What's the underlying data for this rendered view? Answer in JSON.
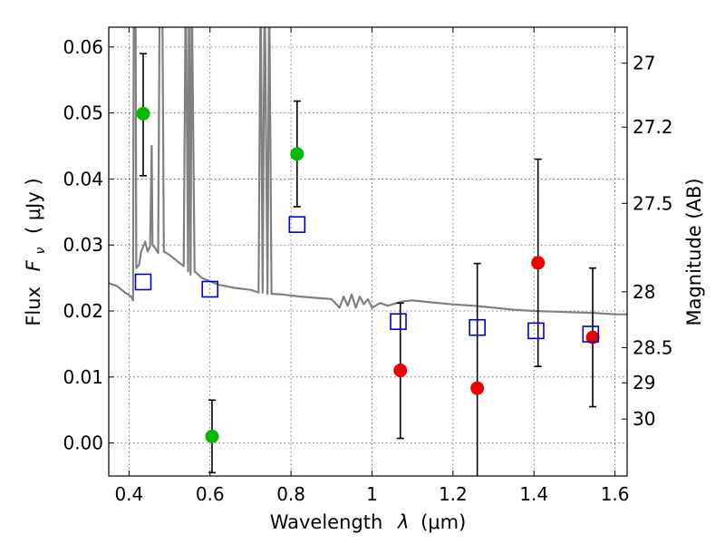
{
  "colors": {
    "model": "#808080",
    "green": "#00bb00",
    "red": "#ee0000",
    "square": "#0000cc",
    "errorbar": "#000000"
  },
  "chart_data": {
    "type": "scatter",
    "title": "",
    "xlabel_main": "Wavelength",
    "xlabel_sym": "λ",
    "xlabel_unit": "(μm)",
    "ylabel_main": "Flux",
    "ylabel_sym": "F",
    "ylabel_sub": "ν",
    "ylabel_unit": "( μJy )",
    "y2label": "Magnitude (AB)",
    "xlim": [
      0.35,
      1.63
    ],
    "ylim": [
      -0.005,
      0.063
    ],
    "grid": true,
    "x_ticks": [
      {
        "v": 0.4,
        "label": "0.4"
      },
      {
        "v": 0.6,
        "label": "0.6"
      },
      {
        "v": 0.8,
        "label": "0.8"
      },
      {
        "v": 1.0,
        "label": "1"
      },
      {
        "v": 1.2,
        "label": "1.2"
      },
      {
        "v": 1.4,
        "label": "1.4"
      },
      {
        "v": 1.6,
        "label": "1.6"
      }
    ],
    "y_ticks": [
      {
        "v": 0.0,
        "label": "0.00"
      },
      {
        "v": 0.01,
        "label": "0.01"
      },
      {
        "v": 0.02,
        "label": "0.02"
      },
      {
        "v": 0.03,
        "label": "0.03"
      },
      {
        "v": 0.04,
        "label": "0.04"
      },
      {
        "v": 0.05,
        "label": "0.05"
      },
      {
        "v": 0.06,
        "label": "0.06"
      }
    ],
    "y2_ticks": [
      {
        "mag": 27.0,
        "label": "27"
      },
      {
        "mag": 27.2,
        "label": "27.2"
      },
      {
        "mag": 27.5,
        "label": "27.5"
      },
      {
        "mag": 28.0,
        "label": "28"
      },
      {
        "mag": 28.5,
        "label": "28.5"
      },
      {
        "mag": 29.0,
        "label": "29"
      },
      {
        "mag": 30.0,
        "label": "30"
      }
    ],
    "series": [
      {
        "kind": "model-spectrum",
        "points": [
          [
            0.35,
            0.0242
          ],
          [
            0.37,
            0.0238
          ],
          [
            0.39,
            0.0228
          ],
          [
            0.405,
            0.0222
          ],
          [
            0.41,
            0.0216
          ],
          [
            0.412,
            0.07
          ],
          [
            0.416,
            0.07
          ],
          [
            0.418,
            0.0265
          ],
          [
            0.425,
            0.027
          ],
          [
            0.43,
            0.029
          ],
          [
            0.44,
            0.0305
          ],
          [
            0.446,
            0.029
          ],
          [
            0.452,
            0.0298
          ],
          [
            0.456,
            0.045
          ],
          [
            0.458,
            0.03
          ],
          [
            0.465,
            0.0295
          ],
          [
            0.472,
            0.0288
          ],
          [
            0.476,
            0.07
          ],
          [
            0.482,
            0.07
          ],
          [
            0.486,
            0.029
          ],
          [
            0.5,
            0.0285
          ],
          [
            0.52,
            0.0275
          ],
          [
            0.535,
            0.0268
          ],
          [
            0.54,
            0.07
          ],
          [
            0.546,
            0.026
          ],
          [
            0.548,
            0.07
          ],
          [
            0.552,
            0.0255
          ],
          [
            0.555,
            0.07
          ],
          [
            0.562,
            0.026
          ],
          [
            0.58,
            0.025
          ],
          [
            0.62,
            0.024
          ],
          [
            0.66,
            0.0235
          ],
          [
            0.7,
            0.0232
          ],
          [
            0.72,
            0.0228
          ],
          [
            0.725,
            0.07
          ],
          [
            0.73,
            0.0228
          ],
          [
            0.735,
            0.07
          ],
          [
            0.742,
            0.0226
          ],
          [
            0.746,
            0.07
          ],
          [
            0.752,
            0.0226
          ],
          [
            0.78,
            0.0225
          ],
          [
            0.82,
            0.0222
          ],
          [
            0.86,
            0.022
          ],
          [
            0.9,
            0.0218
          ],
          [
            0.92,
            0.0205
          ],
          [
            0.93,
            0.0222
          ],
          [
            0.94,
            0.0208
          ],
          [
            0.95,
            0.0225
          ],
          [
            0.96,
            0.0205
          ],
          [
            0.97,
            0.0222
          ],
          [
            0.98,
            0.021
          ],
          [
            0.99,
            0.0218
          ],
          [
            1.0,
            0.0205
          ],
          [
            1.02,
            0.0212
          ],
          [
            1.04,
            0.0208
          ],
          [
            1.06,
            0.0212
          ],
          [
            1.08,
            0.0215
          ],
          [
            1.1,
            0.0216
          ],
          [
            1.15,
            0.0213
          ],
          [
            1.2,
            0.021
          ],
          [
            1.25,
            0.0208
          ],
          [
            1.3,
            0.0205
          ],
          [
            1.35,
            0.0202
          ],
          [
            1.4,
            0.02
          ],
          [
            1.45,
            0.0199
          ],
          [
            1.5,
            0.0198
          ],
          [
            1.55,
            0.0197
          ],
          [
            1.6,
            0.0195
          ],
          [
            1.63,
            0.0195
          ]
        ]
      },
      {
        "kind": "green-points",
        "points": [
          {
            "x": 0.435,
            "y": 0.0499,
            "lo": 0.0405,
            "hi": 0.059
          },
          {
            "x": 0.605,
            "y": 0.001,
            "lo": -0.0045,
            "hi": 0.0065
          },
          {
            "x": 0.815,
            "y": 0.0438,
            "lo": 0.0358,
            "hi": 0.0518
          }
        ]
      },
      {
        "kind": "red-points",
        "points": [
          {
            "x": 1.07,
            "y": 0.011,
            "lo": 0.0007,
            "hi": 0.0212
          },
          {
            "x": 1.26,
            "y": 0.0083,
            "lo": -0.0055,
            "hi": 0.0272
          },
          {
            "x": 1.41,
            "y": 0.0273,
            "lo": 0.0116,
            "hi": 0.043
          },
          {
            "x": 1.545,
            "y": 0.016,
            "lo": 0.0055,
            "hi": 0.0265
          }
        ]
      },
      {
        "kind": "model-squares",
        "points": [
          {
            "x": 0.435,
            "y": 0.0244
          },
          {
            "x": 0.6,
            "y": 0.0233
          },
          {
            "x": 0.815,
            "y": 0.0331
          },
          {
            "x": 1.065,
            "y": 0.0184
          },
          {
            "x": 1.26,
            "y": 0.0175
          },
          {
            "x": 1.405,
            "y": 0.017
          },
          {
            "x": 1.54,
            "y": 0.0165
          }
        ]
      }
    ]
  }
}
